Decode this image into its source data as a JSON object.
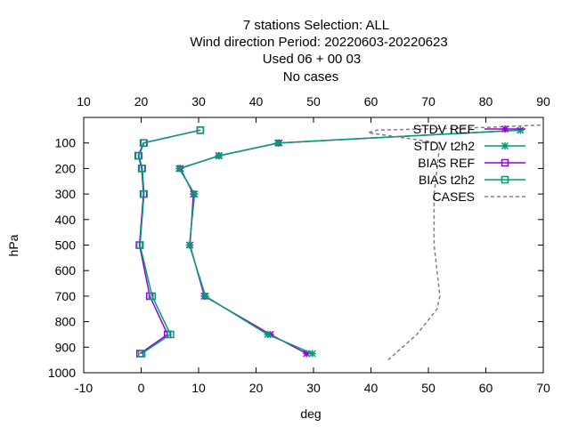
{
  "title_lines": [
    "7 stations Selection: ALL",
    "Wind direction  Period: 20220603-20220623",
    "Used  06  + 00 03",
    "No cases"
  ],
  "chart_data": {
    "type": "line",
    "xlabel": "deg",
    "ylabel": "hPa",
    "xlim": [
      -10,
      70
    ],
    "x2lim": [
      10,
      90
    ],
    "ylim": [
      1000,
      0
    ],
    "y_reversed": true,
    "x_ticks": [
      "-10",
      "0",
      "10",
      "20",
      "30",
      "40",
      "50",
      "60",
      "70"
    ],
    "x2_ticks": [
      "10",
      "20",
      "30",
      "40",
      "50",
      "60",
      "70",
      "80",
      "90"
    ],
    "y_ticks": [
      "100",
      "200",
      "300",
      "400",
      "500",
      "600",
      "700",
      "800",
      "900",
      "1000"
    ],
    "legend_position": "top-right",
    "grid": false,
    "series": [
      {
        "name": "STDV REF",
        "axis": "x1",
        "color": "#9400d3",
        "marker": "star",
        "dash": false,
        "points": [
          [
            66,
            50
          ],
          [
            24,
            100
          ],
          [
            13.5,
            150
          ],
          [
            6.8,
            200
          ],
          [
            9.1,
            300
          ],
          [
            8.5,
            500
          ],
          [
            11,
            700
          ],
          [
            22.5,
            850
          ],
          [
            28.8,
            925
          ]
        ]
      },
      {
        "name": "STDV t2h2",
        "axis": "x1",
        "color": "#009e73",
        "marker": "star",
        "dash": false,
        "points": [
          [
            66,
            50
          ],
          [
            23.8,
            100
          ],
          [
            13.6,
            150
          ],
          [
            6.6,
            200
          ],
          [
            9.3,
            300
          ],
          [
            8.4,
            500
          ],
          [
            11.2,
            700
          ],
          [
            22,
            850
          ],
          [
            29.8,
            925
          ]
        ]
      },
      {
        "name": "BIAS REF",
        "axis": "x1",
        "color": "#9400d3",
        "marker": "square",
        "dash": false,
        "points": [
          [
            10.3,
            50
          ],
          [
            0.4,
            100
          ],
          [
            -0.5,
            150
          ],
          [
            0.1,
            200
          ],
          [
            0.4,
            300
          ],
          [
            -0.3,
            500
          ],
          [
            1.5,
            700
          ],
          [
            4.6,
            850
          ],
          [
            -0.2,
            925
          ]
        ]
      },
      {
        "name": "BIAS t2h2",
        "axis": "x1",
        "color": "#009e73",
        "marker": "square",
        "dash": false,
        "points": [
          [
            10.3,
            50
          ],
          [
            0.5,
            100
          ],
          [
            -0.4,
            150
          ],
          [
            0.2,
            200
          ],
          [
            0.5,
            300
          ],
          [
            -0.2,
            500
          ],
          [
            1.9,
            700
          ],
          [
            5.1,
            850
          ],
          [
            0.1,
            925
          ]
        ]
      },
      {
        "name": "CASES",
        "axis": "x2",
        "color": "#808080",
        "marker": "none",
        "dash": true,
        "points": [
          [
            89.5,
            30
          ],
          [
            79,
            40
          ],
          [
            61,
            50
          ],
          [
            59.5,
            60
          ],
          [
            72,
            100
          ],
          [
            71.5,
            200
          ],
          [
            71,
            300
          ],
          [
            71,
            400
          ],
          [
            71,
            500
          ],
          [
            71.5,
            600
          ],
          [
            72,
            700
          ],
          [
            71.5,
            750
          ],
          [
            68,
            850
          ],
          [
            63,
            950
          ]
        ]
      }
    ]
  }
}
